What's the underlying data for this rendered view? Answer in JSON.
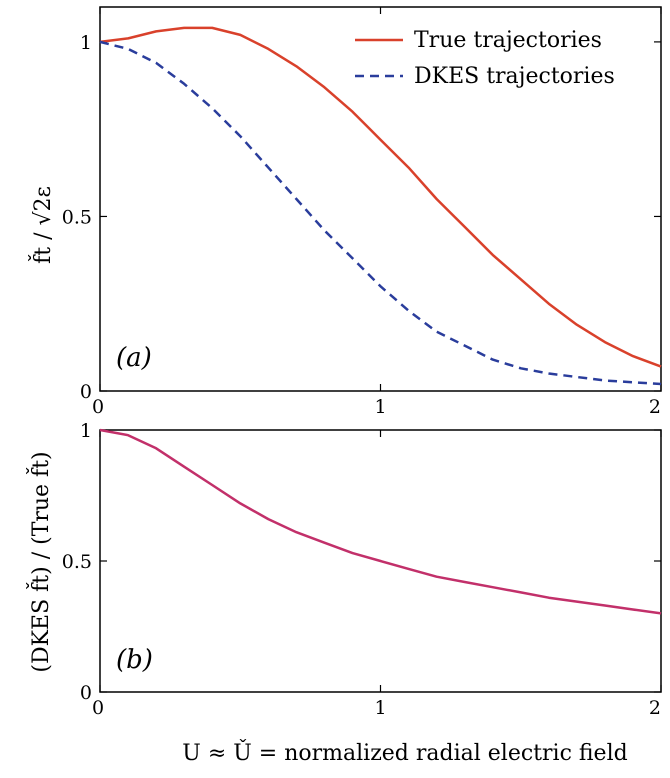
{
  "chart_data": [
    {
      "type": "line",
      "panel_label": "(a)",
      "ylabel": "f̌t / √2ε",
      "xlabel": "",
      "xlim": [
        0,
        2
      ],
      "ylim": [
        0,
        1.1
      ],
      "x_ticks": [
        "0",
        "1",
        "2"
      ],
      "y_ticks": [
        "0",
        "0.5",
        "1"
      ],
      "legend_position": "top-right",
      "series": [
        {
          "name": "True trajectories",
          "color": "#d9412b",
          "dash": "solid",
          "x": [
            0,
            0.1,
            0.2,
            0.3,
            0.4,
            0.5,
            0.6,
            0.7,
            0.8,
            0.9,
            1.0,
            1.1,
            1.2,
            1.3,
            1.4,
            1.5,
            1.6,
            1.7,
            1.8,
            1.9,
            2.0
          ],
          "y": [
            1.0,
            1.01,
            1.03,
            1.04,
            1.04,
            1.02,
            0.98,
            0.93,
            0.87,
            0.8,
            0.72,
            0.64,
            0.55,
            0.47,
            0.39,
            0.32,
            0.25,
            0.19,
            0.14,
            0.1,
            0.07
          ]
        },
        {
          "name": "DKES trajectories",
          "color": "#2a3d9c",
          "dash": "dashed",
          "x": [
            0,
            0.1,
            0.2,
            0.3,
            0.4,
            0.5,
            0.6,
            0.7,
            0.8,
            0.9,
            1.0,
            1.1,
            1.2,
            1.3,
            1.4,
            1.5,
            1.6,
            1.7,
            1.8,
            1.9,
            2.0
          ],
          "y": [
            1.0,
            0.98,
            0.94,
            0.88,
            0.81,
            0.73,
            0.64,
            0.55,
            0.46,
            0.38,
            0.3,
            0.23,
            0.17,
            0.13,
            0.09,
            0.065,
            0.05,
            0.04,
            0.03,
            0.025,
            0.02
          ]
        }
      ]
    },
    {
      "type": "line",
      "panel_label": "(b)",
      "ylabel": "(DKES f̌t) / (True f̌t)",
      "xlabel": "U ≈ Ǔ = normalized radial electric field",
      "xlim": [
        0,
        2
      ],
      "ylim": [
        0,
        1
      ],
      "x_ticks": [
        "0",
        "1",
        "2"
      ],
      "y_ticks": [
        "0",
        "0.5",
        "1"
      ],
      "series": [
        {
          "color": "#c2306a",
          "dash": "solid",
          "x": [
            0,
            0.1,
            0.2,
            0.3,
            0.4,
            0.5,
            0.6,
            0.7,
            0.8,
            0.9,
            1.0,
            1.1,
            1.2,
            1.3,
            1.4,
            1.5,
            1.6,
            1.7,
            1.8,
            1.9,
            2.0
          ],
          "y": [
            1.0,
            0.98,
            0.93,
            0.86,
            0.79,
            0.72,
            0.66,
            0.61,
            0.57,
            0.53,
            0.5,
            0.47,
            0.44,
            0.42,
            0.4,
            0.38,
            0.36,
            0.345,
            0.33,
            0.315,
            0.3
          ]
        }
      ]
    }
  ]
}
